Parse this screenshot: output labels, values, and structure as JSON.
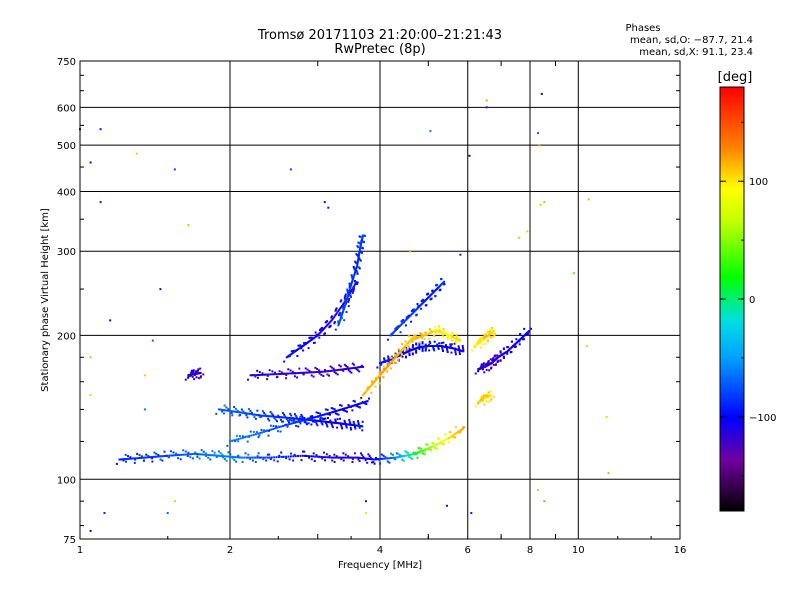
{
  "chart_data": {
    "type": "scatter",
    "title": "Tromsø 20171103 21:20:00–21:21:43",
    "subtitle": "RwPretec (8p)",
    "xlabel": "Frequency [MHz]",
    "ylabel": "Stationary phase Virtual Height [km]",
    "x_scale": "log",
    "y_scale": "log",
    "xlim": [
      1,
      16
    ],
    "ylim": [
      75,
      750
    ],
    "x_ticks": [
      1,
      2,
      4,
      6,
      8,
      10,
      16
    ],
    "x_tick_labels": [
      "1",
      "2",
      "4",
      "6",
      "8",
      "10",
      "16"
    ],
    "y_ticks": [
      75,
      100,
      200,
      300,
      400,
      500,
      600,
      750
    ],
    "y_tick_labels": [
      "75",
      "100",
      "200",
      "300",
      "400",
      "500",
      "600",
      "750"
    ],
    "grid": true,
    "info": {
      "heading": "Phases",
      "line1": "mean, sd,O: −87.7, 21.4",
      "line2": "mean, sd,X:  91.1, 23.4"
    },
    "colorbar": {
      "label": "[deg]",
      "range": [
        -180,
        180
      ],
      "ticks": [
        100,
        0,
        -100
      ],
      "tick_labels": [
        "100",
        "0",
        "−100"
      ]
    },
    "traces": [
      {
        "freq": [
          1.2,
          1.35,
          1.5,
          1.7,
          1.9,
          2.1,
          2.4,
          2.8,
          3.2,
          3.6,
          3.9,
          4.3,
          4.7,
          5.1,
          5.5,
          5.9
        ],
        "height": [
          110,
          111,
          112,
          113,
          112,
          111,
          111,
          112,
          111,
          111,
          110,
          111,
          113,
          117,
          122,
          128
        ],
        "phase": [
          -90,
          -85,
          -80,
          -70,
          -60,
          -65,
          -85,
          -100,
          -110,
          -115,
          -100,
          -60,
          10,
          60,
          100,
          120
        ]
      },
      {
        "freq": [
          1.9,
          2.1,
          2.3,
          2.5,
          2.7,
          2.9,
          3.1,
          3.3,
          3.5,
          3.7
        ],
        "height": [
          140,
          138,
          136,
          135,
          134,
          133,
          132,
          131,
          130,
          129
        ],
        "phase": [
          -70,
          -75,
          -80,
          -85,
          -90,
          -95,
          -100,
          -105,
          -100,
          -95
        ]
      },
      {
        "freq": [
          2.0,
          2.3,
          2.6,
          2.9,
          3.2,
          3.5,
          3.8
        ],
        "height": [
          120,
          125,
          130,
          134,
          138,
          142,
          146
        ],
        "phase": [
          -65,
          -70,
          -80,
          -90,
          -100,
          -105,
          -100
        ]
      },
      {
        "freq": [
          2.2,
          2.5,
          2.8,
          3.1,
          3.4,
          3.7
        ],
        "height": [
          165,
          166,
          167,
          168,
          170,
          172
        ],
        "phase": [
          -110,
          -115,
          -118,
          -120,
          -118,
          -112
        ]
      },
      {
        "freq": [
          2.6,
          2.8,
          3.0,
          3.2,
          3.4,
          3.6
        ],
        "height": [
          180,
          190,
          200,
          215,
          235,
          260
        ],
        "phase": [
          -95,
          -100,
          -105,
          -110,
          -110,
          -105
        ]
      },
      {
        "freq": [
          3.3,
          3.4,
          3.5,
          3.6,
          3.65,
          3.7
        ],
        "height": [
          210,
          230,
          255,
          280,
          305,
          325
        ],
        "phase": [
          -75,
          -80,
          -85,
          -90,
          -85,
          -80
        ]
      },
      {
        "freq": [
          4.0,
          4.2,
          4.4,
          4.6,
          4.8,
          5.0,
          5.3,
          5.6,
          5.9
        ],
        "height": [
          175,
          178,
          182,
          186,
          189,
          190,
          190,
          188,
          185
        ],
        "phase": [
          -90,
          -95,
          -100,
          -105,
          -100,
          -95,
          -100,
          -105,
          -110
        ]
      },
      {
        "freq": [
          3.7,
          3.9,
          4.1,
          4.3,
          4.5,
          4.7
        ],
        "height": [
          150,
          160,
          170,
          180,
          190,
          200
        ],
        "phase": [
          110,
          115,
          120,
          118,
          112,
          108
        ]
      },
      {
        "freq": [
          4.6,
          4.9,
          5.2,
          5.5,
          5.8
        ],
        "height": [
          195,
          200,
          205,
          200,
          195
        ],
        "phase": [
          110,
          115,
          100,
          95,
          105
        ]
      },
      {
        "freq": [
          4.2,
          4.5,
          4.8,
          5.1,
          5.4
        ],
        "height": [
          200,
          215,
          230,
          245,
          260
        ],
        "phase": [
          -80,
          -85,
          -90,
          -95,
          -85
        ]
      },
      {
        "freq": [
          6.3,
          6.5,
          6.7,
          6.9,
          7.2,
          7.6,
          8.0
        ],
        "height": [
          170,
          172,
          175,
          180,
          185,
          195,
          205
        ],
        "phase": [
          -110,
          -115,
          -120,
          -115,
          -110,
          -105,
          -100
        ]
      },
      {
        "freq": [
          6.2,
          6.4,
          6.6,
          6.8
        ],
        "height": [
          190,
          195,
          200,
          205
        ],
        "phase": [
          95,
          100,
          110,
          100
        ]
      },
      {
        "freq": [
          6.3,
          6.5,
          6.7
        ],
        "height": [
          145,
          148,
          150
        ],
        "phase": [
          105,
          110,
          100
        ]
      },
      {
        "freq": [
          1.65,
          1.7,
          1.75
        ],
        "height": [
          165,
          166,
          167
        ],
        "phase": [
          -110,
          -115,
          -120
        ]
      }
    ],
    "scatter_points": [
      {
        "freq": 1.1,
        "height": 540,
        "phase": -95
      },
      {
        "freq": 1.05,
        "height": 460,
        "phase": -105
      },
      {
        "freq": 1.1,
        "height": 380,
        "phase": -90
      },
      {
        "freq": 1.3,
        "height": 480,
        "phase": 110
      },
      {
        "freq": 1.55,
        "height": 445,
        "phase": -80
      },
      {
        "freq": 1.45,
        "height": 250,
        "phase": -110
      },
      {
        "freq": 1.65,
        "height": 340,
        "phase": 115
      },
      {
        "freq": 2.65,
        "height": 445,
        "phase": -80
      },
      {
        "freq": 3.15,
        "height": 370,
        "phase": -115
      },
      {
        "freq": 3.1,
        "height": 380,
        "phase": -110
      },
      {
        "freq": 5.05,
        "height": 535,
        "phase": -60
      },
      {
        "freq": 6.05,
        "height": 475,
        "phase": -155
      },
      {
        "freq": 6.55,
        "height": 620,
        "phase": 120
      },
      {
        "freq": 6.55,
        "height": 600,
        "phase": -140
      },
      {
        "freq": 8.45,
        "height": 640,
        "phase": -160
      },
      {
        "freq": 8.3,
        "height": 530,
        "phase": -70
      },
      {
        "freq": 8.35,
        "height": 500,
        "phase": 120
      },
      {
        "freq": 8.4,
        "height": 375,
        "phase": 110
      },
      {
        "freq": 8.55,
        "height": 380,
        "phase": 115
      },
      {
        "freq": 7.6,
        "height": 320,
        "phase": 50
      },
      {
        "freq": 7.9,
        "height": 330,
        "phase": 110
      },
      {
        "freq": 10.5,
        "height": 385,
        "phase": 115
      },
      {
        "freq": 9.8,
        "height": 270,
        "phase": 40
      },
      {
        "freq": 10.4,
        "height": 190,
        "phase": 110
      },
      {
        "freq": 8.3,
        "height": 95,
        "phase": 110
      },
      {
        "freq": 8.55,
        "height": 90,
        "phase": 130
      },
      {
        "freq": 11.5,
        "height": 103,
        "phase": 120
      },
      {
        "freq": 11.4,
        "height": 135,
        "phase": 105
      },
      {
        "freq": 1.05,
        "height": 78,
        "phase": -100
      },
      {
        "freq": 1.12,
        "height": 85,
        "phase": -90
      },
      {
        "freq": 1.5,
        "height": 85,
        "phase": -70
      },
      {
        "freq": 1.55,
        "height": 90,
        "phase": 110
      },
      {
        "freq": 3.75,
        "height": 90,
        "phase": -120
      },
      {
        "freq": 3.75,
        "height": 85,
        "phase": 100
      },
      {
        "freq": 5.45,
        "height": 88,
        "phase": -110
      },
      {
        "freq": 6.1,
        "height": 85,
        "phase": -90
      },
      {
        "freq": 1.0,
        "height": 540,
        "phase": -95
      },
      {
        "freq": 1.05,
        "height": 180,
        "phase": 115
      },
      {
        "freq": 1.05,
        "height": 150,
        "phase": 110
      },
      {
        "freq": 1.15,
        "height": 215,
        "phase": -100
      },
      {
        "freq": 1.35,
        "height": 165,
        "phase": 110
      },
      {
        "freq": 1.35,
        "height": 140,
        "phase": -60
      },
      {
        "freq": 1.4,
        "height": 195,
        "phase": -70
      },
      {
        "freq": 5.8,
        "height": 295,
        "phase": -120
      },
      {
        "freq": 4.6,
        "height": 300,
        "phase": 120
      }
    ]
  }
}
